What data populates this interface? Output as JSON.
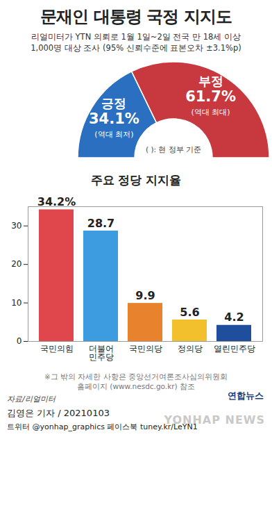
{
  "header": {
    "title": "문재인 대통령 국정 지지도",
    "subtitle": "리얼미터가 YTN 의뢰로 1월 1일~2일 전국 만 18세 이상\n1,000명 대상 조사 (95% 신뢰수준에 표본오차 ±3.1%p)"
  },
  "chart_data": [
    {
      "type": "pie",
      "categories": [
        "긍정",
        "부정"
      ],
      "values": [
        34.1,
        61.7
      ],
      "value_labels": [
        "34.1%",
        "61.7%"
      ],
      "colors": [
        "#2a6fc0",
        "#c8393f"
      ],
      "data_labels": true,
      "annotations": [
        {
          "category": "긍정",
          "text": "(역대 최저)"
        },
        {
          "category": "부정",
          "text": "(역대 최대)"
        }
      ],
      "note": "( ): 현 정부 기준"
    },
    {
      "type": "bar",
      "title": "주요 정당 지지율",
      "categories": [
        "국민의힘",
        "더불어\n민주당",
        "국민의당",
        "정의당",
        "열린민주당"
      ],
      "values": [
        34.2,
        28.7,
        9.9,
        5.6,
        4.2
      ],
      "value_labels": [
        "34.2%",
        "28.7",
        "9.9",
        "5.6",
        "4.2"
      ],
      "colors": [
        "#e0474c",
        "#3d9be0",
        "#e8822d",
        "#f2c02c",
        "#1f4f9c"
      ],
      "ylim": [
        0,
        35
      ],
      "yticks": [
        0,
        10,
        20,
        30
      ],
      "grid": false,
      "data_labels": true
    }
  ],
  "footer": {
    "note": "※그 밖의 자세한 사항은 중앙선거여론조사심의위원회\n홈페이지 (www.nesdc.go.kr) 참조",
    "source": "자료/리얼미터",
    "credit": "김영은 기자 / 20210103",
    "social": "트위터 @yonhap_graphics  페이스북 tuney.kr/LeYN1",
    "logo": "연합뉴스",
    "watermark": "YONHAP NEWS"
  }
}
